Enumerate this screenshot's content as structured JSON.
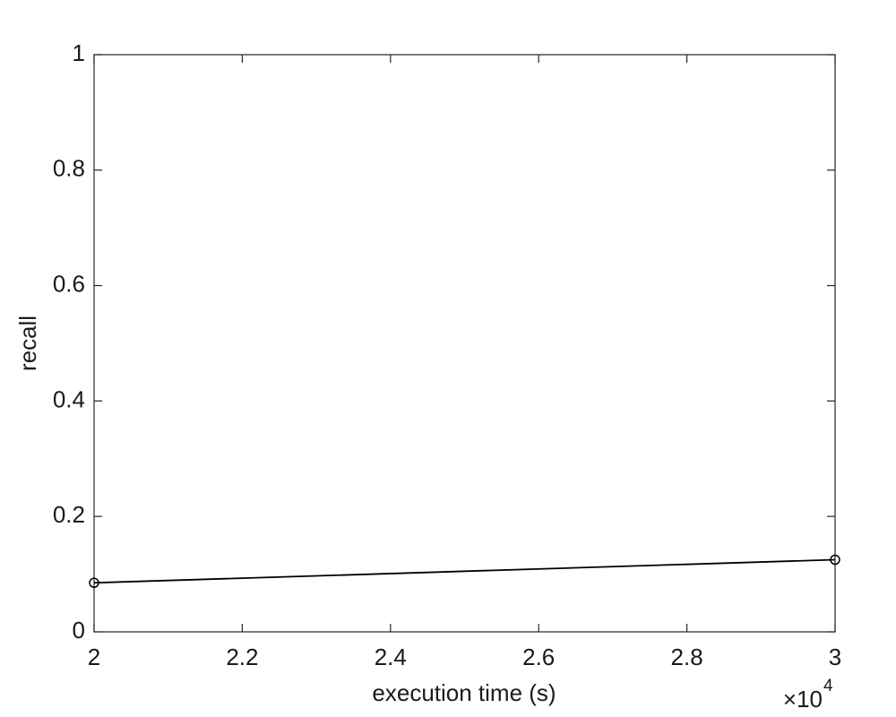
{
  "chart_data": {
    "type": "line",
    "x_label": "execution time (s)",
    "y_label": "recall",
    "x_multiplier": {
      "base": "×10",
      "exponent": "4"
    },
    "x": [
      20000,
      30000
    ],
    "series": [
      {
        "color": "#000000",
        "marker": "circle",
        "values": [
          0.085,
          0.125
        ]
      }
    ],
    "xlim": [
      20000,
      30000
    ],
    "xticks": [
      {
        "value": 20000,
        "label": "2"
      },
      {
        "value": 22000,
        "label": "2.2"
      },
      {
        "value": 24000,
        "label": "2.4"
      },
      {
        "value": 26000,
        "label": "2.6"
      },
      {
        "value": 28000,
        "label": "2.8"
      },
      {
        "value": 30000,
        "label": "3"
      }
    ],
    "ylim": [
      0,
      1
    ],
    "yticks": [
      0,
      0.2,
      0.4,
      0.6,
      0.8,
      1
    ],
    "grid": false
  }
}
